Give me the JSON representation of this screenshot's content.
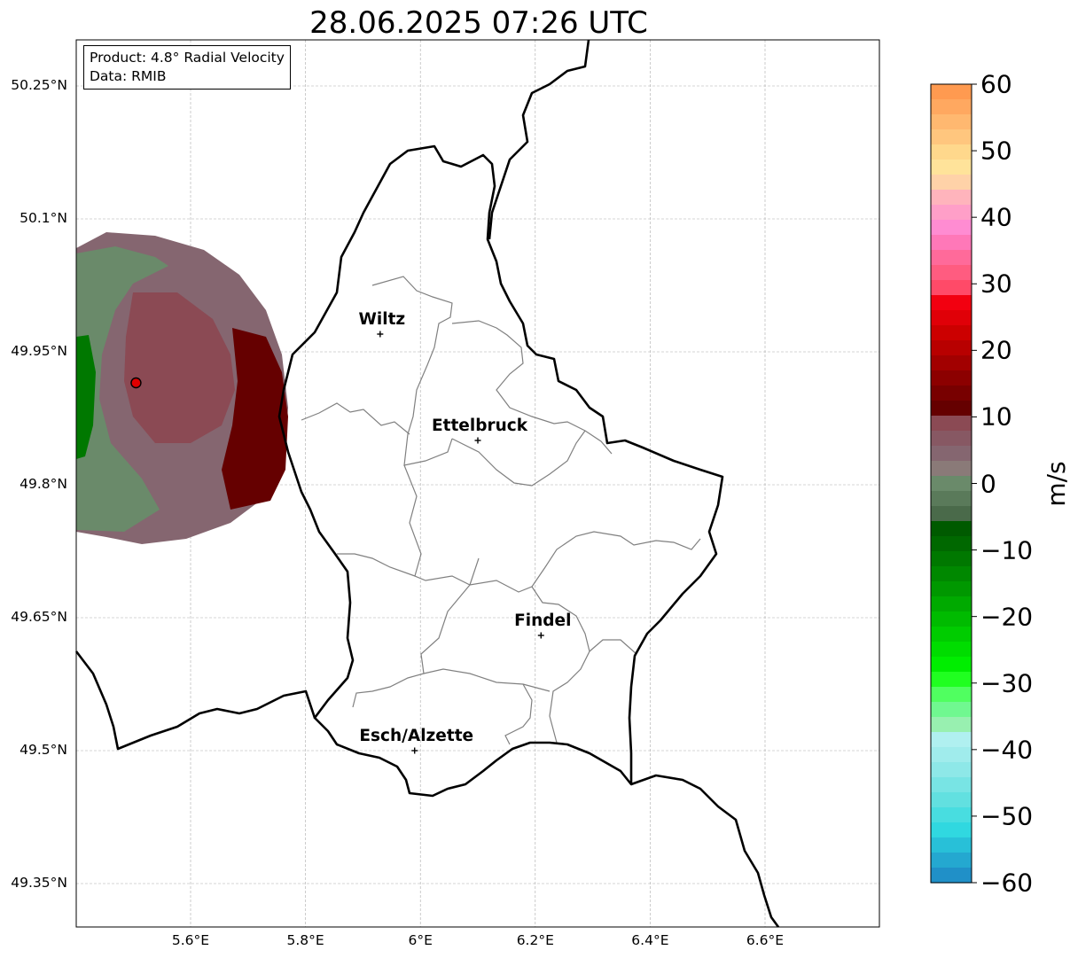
{
  "title": "28.06.2025 07:26 UTC",
  "info_box": {
    "product": "Product: 4.8° Radial Velocity",
    "data": "Data: RMIB"
  },
  "axes": {
    "lat_labels": [
      "50.25°N",
      "50.1°N",
      "49.95°N",
      "49.8°N",
      "49.65°N",
      "49.5°N",
      "49.35°N"
    ],
    "lon_labels": [
      "5.6°E",
      "5.8°E",
      "6°E",
      "6.2°E",
      "6.4°E",
      "6.6°E"
    ],
    "lat_values": [
      50.25,
      50.1,
      49.95,
      49.8,
      49.65,
      49.5,
      49.35
    ],
    "lon_values": [
      5.6,
      5.8,
      6.0,
      6.2,
      6.4,
      6.6
    ],
    "grid": true,
    "lon_range": [
      5.4,
      6.8
    ],
    "lat_range": [
      49.3,
      50.3
    ]
  },
  "cities": [
    {
      "name": "Wiltz",
      "lon": 5.93,
      "lat": 49.97
    },
    {
      "name": "Ettelbruck",
      "lon": 6.1,
      "lat": 49.85
    },
    {
      "name": "Findel",
      "lon": 6.21,
      "lat": 49.63
    },
    {
      "name": "Esch/Alzette",
      "lon": 5.99,
      "lat": 49.5
    }
  ],
  "radar_site": {
    "lon": 5.505,
    "lat": 49.915,
    "color": "#e00000"
  },
  "colorbar": {
    "unit": "m/s",
    "min": -60,
    "max": 60,
    "tick_labels": [
      "60",
      "50",
      "40",
      "30",
      "20",
      "10",
      "0",
      "−10",
      "−20",
      "−30",
      "−40",
      "−50",
      "−60"
    ],
    "tick_values": [
      60,
      50,
      40,
      30,
      20,
      10,
      0,
      -10,
      -20,
      -30,
      -40,
      -50,
      -60
    ],
    "colors_top_to_bottom": [
      "#ff9a50",
      "#ffa860",
      "#ffb870",
      "#ffc67e",
      "#ffd88c",
      "#ffe39a",
      "#ffd2a8",
      "#ffb4bc",
      "#ff9fc8",
      "#ff8cd2",
      "#ff78b8",
      "#ff6a9a",
      "#ff5c80",
      "#ff4a68",
      "#f20010",
      "#e00008",
      "#cc0000",
      "#b80000",
      "#a20000",
      "#8c0000",
      "#780000",
      "#650000",
      "#8b4a54",
      "#875863",
      "#856670",
      "#8a7a78",
      "#6a8a6a",
      "#5a7a5a",
      "#4a6a4a",
      "#005a00",
      "#006800",
      "#007800",
      "#008800",
      "#009800",
      "#00aa00",
      "#00bb00",
      "#00cc00",
      "#00dd00",
      "#00ee00",
      "#20ff20",
      "#50ff60",
      "#70f890",
      "#98f0b0",
      "#b0f0f0",
      "#a0ecec",
      "#8ee8e8",
      "#78e4e4",
      "#62e0e0",
      "#48dde0",
      "#30d8e0",
      "#28c0d8",
      "#24a8d0",
      "#2090c8"
    ]
  }
}
